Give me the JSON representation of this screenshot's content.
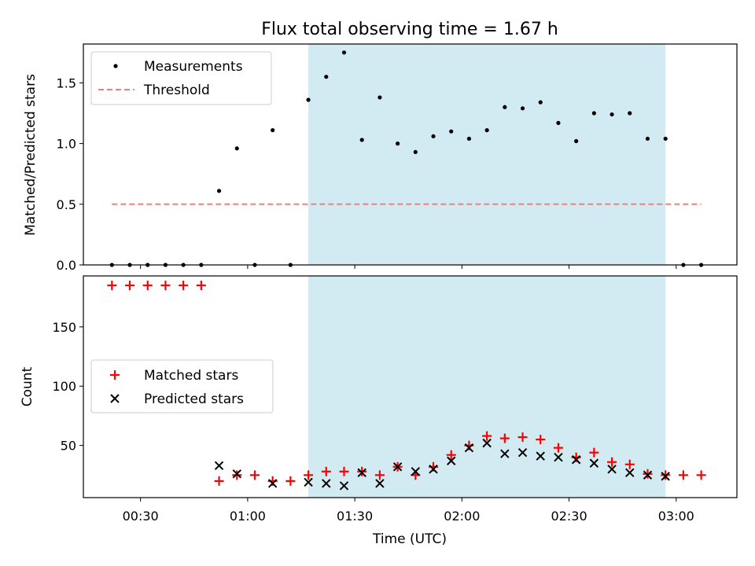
{
  "chart_data": {
    "title": "Flux total observing time = 1.67 h",
    "xlabel": "Time (UTC)",
    "x_ticks": [
      "00:30",
      "01:00",
      "01:30",
      "02:00",
      "02:30",
      "03:00"
    ],
    "x_range": [
      "00:14",
      "03:17"
    ],
    "shaded_interval": [
      "01:17",
      "02:57"
    ],
    "shade_color": "#add8e6",
    "grid": false,
    "panels": [
      {
        "type": "scatter",
        "ylabel": "Matched/Predicted stars",
        "ylim": [
          0,
          1.82
        ],
        "y_ticks": [
          "0.0",
          "0.5",
          "1.0",
          "1.5"
        ],
        "legend_position": "top-left",
        "series": [
          {
            "name": "Measurements",
            "marker": "dot",
            "color": "#000000",
            "x": [
              "00:22",
              "00:27",
              "00:32",
              "00:37",
              "00:42",
              "00:47",
              "00:52",
              "00:57",
              "01:02",
              "01:07",
              "01:12",
              "01:17",
              "01:22",
              "01:27",
              "01:32",
              "01:37",
              "01:42",
              "01:47",
              "01:52",
              "01:57",
              "02:02",
              "02:07",
              "02:12",
              "02:17",
              "02:22",
              "02:27",
              "02:32",
              "02:37",
              "02:42",
              "02:47",
              "02:52",
              "02:57",
              "03:02",
              "03:07"
            ],
            "y": [
              0,
              0,
              0,
              0,
              0,
              0,
              0.61,
              0.96,
              0,
              1.11,
              0,
              1.36,
              1.55,
              1.75,
              1.03,
              1.38,
              1.0,
              0.93,
              1.06,
              1.1,
              1.04,
              1.11,
              1.3,
              1.29,
              1.34,
              1.17,
              1.02,
              1.25,
              1.24,
              1.25,
              1.04,
              1.04,
              0,
              0
            ]
          },
          {
            "name": "Threshold",
            "style": "dashed-line",
            "color": "#f08080",
            "x": [
              "00:22",
              "03:07"
            ],
            "y": [
              0.5,
              0.5
            ]
          }
        ]
      },
      {
        "type": "scatter",
        "ylabel": "Count",
        "ylim": [
          6,
          193
        ],
        "y_ticks": [
          "50",
          "100",
          "150"
        ],
        "legend_position": "center-left",
        "series": [
          {
            "name": "Matched stars",
            "marker": "plus",
            "color": "#ff0000",
            "x": [
              "00:22",
              "00:27",
              "00:32",
              "00:37",
              "00:42",
              "00:47",
              "00:52",
              "00:57",
              "01:02",
              "01:07",
              "01:12",
              "01:17",
              "01:22",
              "01:27",
              "01:32",
              "01:37",
              "01:42",
              "01:47",
              "01:52",
              "01:57",
              "02:02",
              "02:07",
              "02:12",
              "02:17",
              "02:22",
              "02:27",
              "02:32",
              "02:37",
              "02:42",
              "02:47",
              "02:52",
              "02:57",
              "03:02",
              "03:07"
            ],
            "y": [
              185,
              185,
              185,
              185,
              185,
              185,
              20,
              25,
              25,
              20,
              20,
              25,
              28,
              28,
              28,
              25,
              32,
              25,
              32,
              42,
              50,
              58,
              56,
              57,
              55,
              48,
              40,
              44,
              36,
              34,
              26,
              25,
              25,
              25
            ]
          },
          {
            "name": "Predicted stars",
            "marker": "x",
            "color": "#000000",
            "x": [
              "00:52",
              "00:57",
              "01:07",
              "01:17",
              "01:22",
              "01:27",
              "01:32",
              "01:37",
              "01:42",
              "01:47",
              "01:52",
              "01:57",
              "02:02",
              "02:07",
              "02:12",
              "02:17",
              "02:22",
              "02:27",
              "02:32",
              "02:37",
              "02:42",
              "02:47",
              "02:52",
              "02:57"
            ],
            "y": [
              33,
              26,
              18,
              19,
              18,
              16,
              27,
              18,
              32,
              28,
              30,
              37,
              48,
              52,
              43,
              44,
              41,
              40,
              38,
              35,
              30,
              27,
              25,
              24
            ]
          }
        ]
      }
    ]
  }
}
